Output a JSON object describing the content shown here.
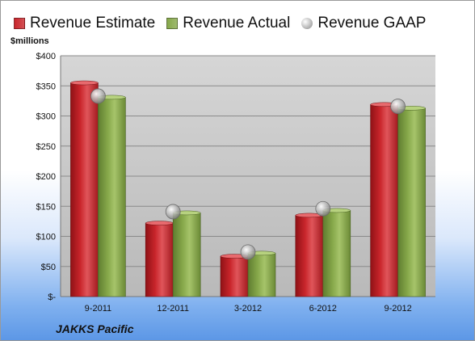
{
  "legend": [
    {
      "label": "Revenue Estimate",
      "color": "#c9252b",
      "kind": "bar"
    },
    {
      "label": "Revenue Actual",
      "color": "#86a84a",
      "kind": "bar"
    },
    {
      "label": "Revenue GAAP",
      "color": "#b8b8b8",
      "kind": "marker"
    }
  ],
  "unit_label": "$millions",
  "company": "JAKKS Pacific",
  "colors": {
    "estimate": "#c9252b",
    "actual": "#86a84a",
    "gaap": "#b8b8b8",
    "plot_bg": "#c8c8c8"
  },
  "chart_data": {
    "type": "bar",
    "categories": [
      "9-2011",
      "12-2011",
      "3-2012",
      "6-2012",
      "9-2012"
    ],
    "series": [
      {
        "name": "Revenue Estimate",
        "values": [
          355,
          122,
          67,
          135,
          319
        ]
      },
      {
        "name": "Revenue Actual",
        "values": [
          331,
          139,
          72,
          143,
          313
        ]
      },
      {
        "name": "Revenue GAAP",
        "values": [
          333,
          141,
          74,
          146,
          316
        ]
      }
    ],
    "ylabel": "$millions",
    "ylim": [
      0,
      400
    ],
    "yticks": [
      0,
      50,
      100,
      150,
      200,
      250,
      300,
      350,
      400
    ],
    "ytick_labels": [
      "$-",
      "$50",
      "$100",
      "$150",
      "$200",
      "$250",
      "$300",
      "$350",
      "$400"
    ],
    "grid": true,
    "legend_position": "top"
  }
}
